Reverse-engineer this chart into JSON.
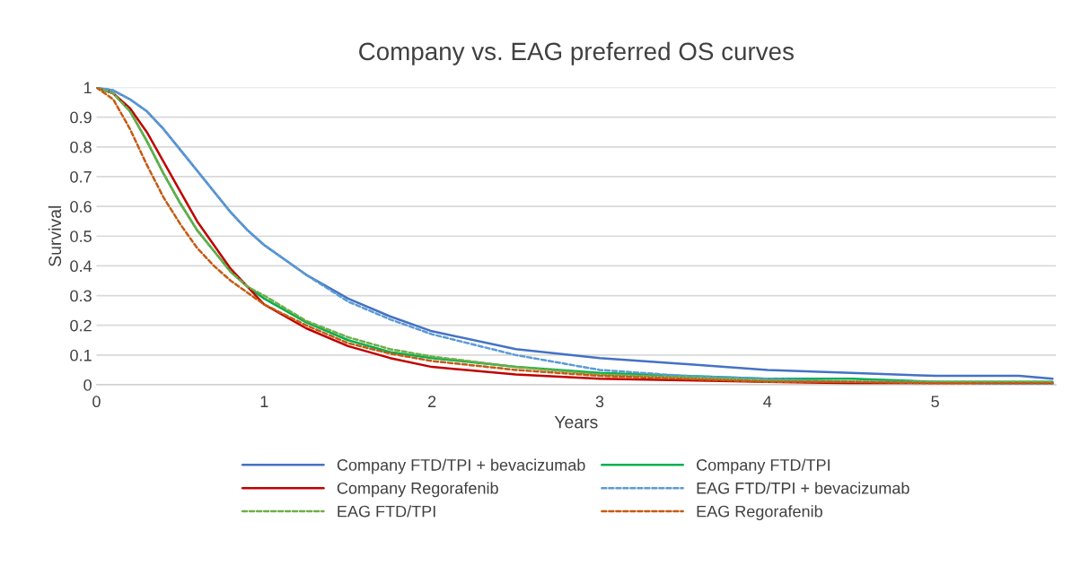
{
  "chart_data": {
    "type": "line",
    "title": "Company vs. EAG preferred OS curves",
    "xlabel": "Years",
    "ylabel": "Survival",
    "x": [
      0,
      0.1,
      0.2,
      0.3,
      0.4,
      0.5,
      0.6,
      0.7,
      0.8,
      0.9,
      1.0,
      1.25,
      1.5,
      1.75,
      2,
      2.5,
      3,
      3.5,
      4,
      4.5,
      5,
      5.5,
      5.7
    ],
    "series": [
      {
        "name": "Company FTD/TPI + bevacizumab",
        "color": "#4472c4",
        "line_style": "solid",
        "values": [
          1,
          0.99,
          0.96,
          0.92,
          0.86,
          0.79,
          0.72,
          0.65,
          0.58,
          0.52,
          0.47,
          0.37,
          0.29,
          0.23,
          0.18,
          0.12,
          0.09,
          0.07,
          0.05,
          0.04,
          0.03,
          0.03,
          0.02
        ]
      },
      {
        "name": "Company FTD/TPI",
        "color": "#00b050",
        "line_style": "solid",
        "values": [
          1,
          0.98,
          0.92,
          0.82,
          0.71,
          0.61,
          0.52,
          0.45,
          0.38,
          0.33,
          0.29,
          0.21,
          0.15,
          0.11,
          0.09,
          0.06,
          0.04,
          0.03,
          0.02,
          0.02,
          0.01,
          0.01,
          0.01
        ]
      },
      {
        "name": "Company Regorafenib",
        "color": "#c00000",
        "line_style": "solid",
        "values": [
          1,
          0.98,
          0.93,
          0.85,
          0.75,
          0.65,
          0.55,
          0.47,
          0.39,
          0.33,
          0.27,
          0.19,
          0.13,
          0.09,
          0.06,
          0.035,
          0.02,
          0.015,
          0.01,
          0.005,
          0.005,
          0.005,
          0.005
        ]
      },
      {
        "name": "EAG FTD/TPI + bevacizumab",
        "color": "#5b9bd5",
        "line_style": "dashed",
        "values": [
          1,
          0.99,
          0.96,
          0.92,
          0.86,
          0.79,
          0.72,
          0.65,
          0.58,
          0.52,
          0.47,
          0.37,
          0.28,
          0.22,
          0.17,
          0.1,
          0.05,
          0.03,
          0.02,
          0.01,
          0.01,
          0,
          0
        ]
      },
      {
        "name": "EAG FTD/TPI",
        "color": "#70ad47",
        "line_style": "dashed",
        "values": [
          1,
          0.98,
          0.92,
          0.82,
          0.71,
          0.61,
          0.52,
          0.45,
          0.38,
          0.33,
          0.3,
          0.215,
          0.16,
          0.12,
          0.095,
          0.06,
          0.035,
          0.025,
          0.015,
          0.01,
          0.01,
          0.01,
          0.01
        ]
      },
      {
        "name": "EAG Regorafenib",
        "color": "#c55a11",
        "line_style": "dashed",
        "values": [
          1,
          0.96,
          0.86,
          0.74,
          0.63,
          0.54,
          0.46,
          0.4,
          0.35,
          0.31,
          0.27,
          0.2,
          0.14,
          0.105,
          0.08,
          0.05,
          0.03,
          0.02,
          0.01,
          0.01,
          0.005,
          0.005,
          0.005
        ]
      }
    ],
    "xlim": [
      0,
      5.72
    ],
    "xticks": [
      0,
      1,
      2,
      3,
      4,
      5
    ],
    "ylim": [
      0,
      1
    ],
    "yticks": [
      0,
      0.1,
      0.2,
      0.3,
      0.4,
      0.5,
      0.6,
      0.7,
      0.8,
      0.9,
      1
    ],
    "grid": "y",
    "legend": "bottom",
    "marker": "none"
  }
}
